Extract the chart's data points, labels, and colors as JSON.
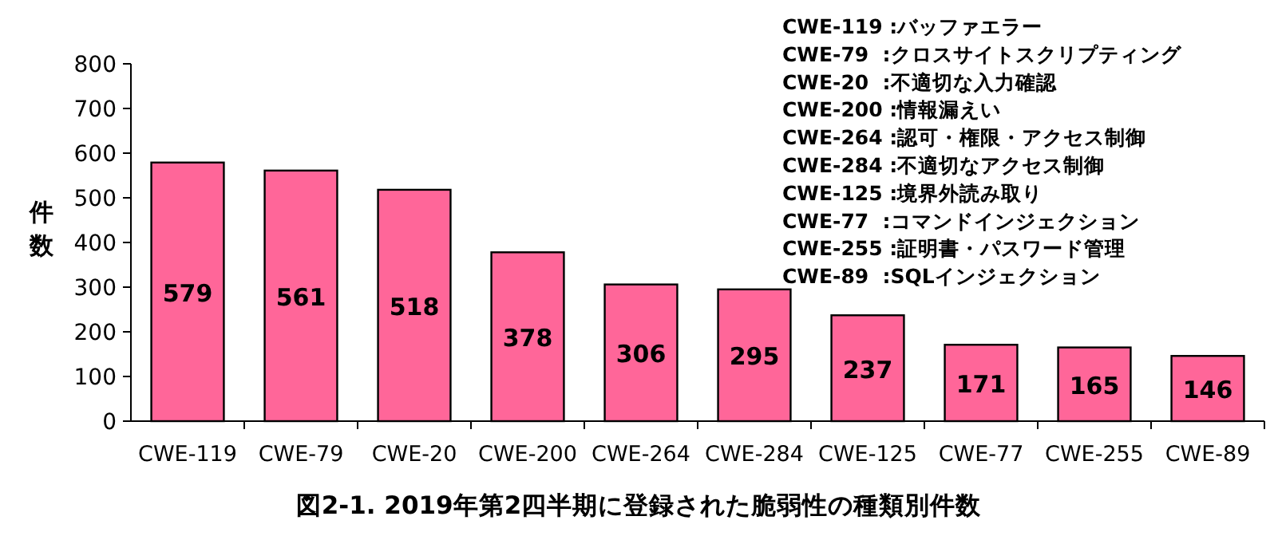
{
  "chart_data": {
    "type": "bar",
    "title": "図2-1. 2019年第2四半期に登録された脆弱性の種類別件数",
    "ylabel": "件数",
    "categories": [
      "CWE-119",
      "CWE-79",
      "CWE-20",
      "CWE-200",
      "CWE-264",
      "CWE-284",
      "CWE-125",
      "CWE-77",
      "CWE-255",
      "CWE-89"
    ],
    "values": [
      579,
      561,
      518,
      378,
      306,
      295,
      237,
      171,
      165,
      146
    ],
    "color": "#ff6699",
    "ylim": [
      0,
      800
    ],
    "yticks": [
      0,
      100,
      200,
      300,
      400,
      500,
      600,
      700,
      800
    ],
    "data_labels": true,
    "grid": false,
    "annotations": [
      "CWE-119 :バッファエラー",
      "CWE-79  :クロスサイトスクリプティング",
      "CWE-20  :不適切な入力確認",
      "CWE-200 :情報漏えい",
      "CWE-264 :認可・権限・アクセス制御",
      "CWE-284 :不適切なアクセス制御",
      "CWE-125 :境界外読み取り",
      "CWE-77  :コマンドインジェクション",
      "CWE-255 :証明書・パスワード管理",
      "CWE-89  :SQLインジェクション"
    ]
  }
}
